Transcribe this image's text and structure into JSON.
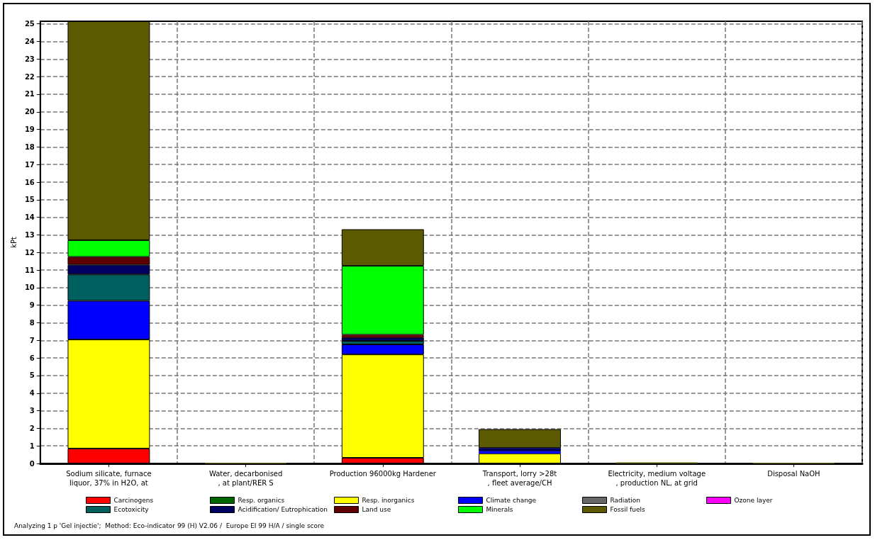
{
  "chart_data": {
    "type": "bar",
    "stacked": true,
    "ylabel": "kPt",
    "categories": [
      "Sodium silicate, furnace\nliquor, 37% in H2O, at",
      "Water, decarbonised\n, at plant/RER S",
      "Production 96000kg Hardener",
      "Transport, lorry >28t\n, fleet average/CH",
      "Electricity, medium voltage\n, production NL, at grid",
      "Disposal NaOH"
    ],
    "series": [
      {
        "name": "Carcinogens",
        "color": "#ff0000",
        "values": [
          0.85,
          0,
          0.32,
          0,
          0,
          0
        ]
      },
      {
        "name": "Resp. organics",
        "color": "#006600",
        "values": [
          0,
          0,
          0,
          0,
          0,
          0
        ]
      },
      {
        "name": "Resp. inorganics",
        "color": "#ffff00",
        "values": [
          6.2,
          0,
          5.88,
          0.57,
          0,
          0
        ]
      },
      {
        "name": "Climate change",
        "color": "#0000ff",
        "values": [
          2.2,
          0,
          0.57,
          0.12,
          0,
          0
        ]
      },
      {
        "name": "Radiation",
        "color": "#666666",
        "values": [
          0,
          0,
          0,
          0,
          0,
          0
        ]
      },
      {
        "name": "Ozone layer",
        "color": "#ff00ff",
        "values": [
          0,
          0,
          0,
          0,
          0,
          0
        ]
      },
      {
        "name": "Ecotoxicity",
        "color": "#006060",
        "values": [
          1.5,
          0,
          0.2,
          0,
          0,
          0
        ]
      },
      {
        "name": "Acidification/ Eutrophication",
        "color": "#000060",
        "values": [
          0.55,
          0,
          0.2,
          0.19,
          0,
          0
        ]
      },
      {
        "name": "Land use",
        "color": "#600000",
        "values": [
          0.45,
          0,
          0.15,
          0,
          0,
          0
        ]
      },
      {
        "name": "Minerals",
        "color": "#00ff00",
        "values": [
          0.95,
          0,
          3.92,
          0,
          0,
          0
        ]
      },
      {
        "name": "Fossil fuels",
        "color": "#5c5a00",
        "values": [
          12.45,
          0.03,
          2.08,
          1.07,
          0.06,
          0.03
        ]
      }
    ],
    "ylim": [
      0,
      25.15
    ],
    "yticks": [
      0,
      1,
      2,
      3,
      4,
      5,
      6,
      7,
      8,
      9,
      10,
      11,
      12,
      13,
      14,
      15,
      16,
      17,
      18,
      19,
      20,
      21,
      22,
      23,
      24,
      25
    ],
    "grid": true,
    "legend": "bottom",
    "annotations": [
      "Analyzing 1 p 'Gel injectie';  Method: Eco-indicator 99 (H) V2.06 /  Europe EI 99 H/A / single score"
    ]
  }
}
